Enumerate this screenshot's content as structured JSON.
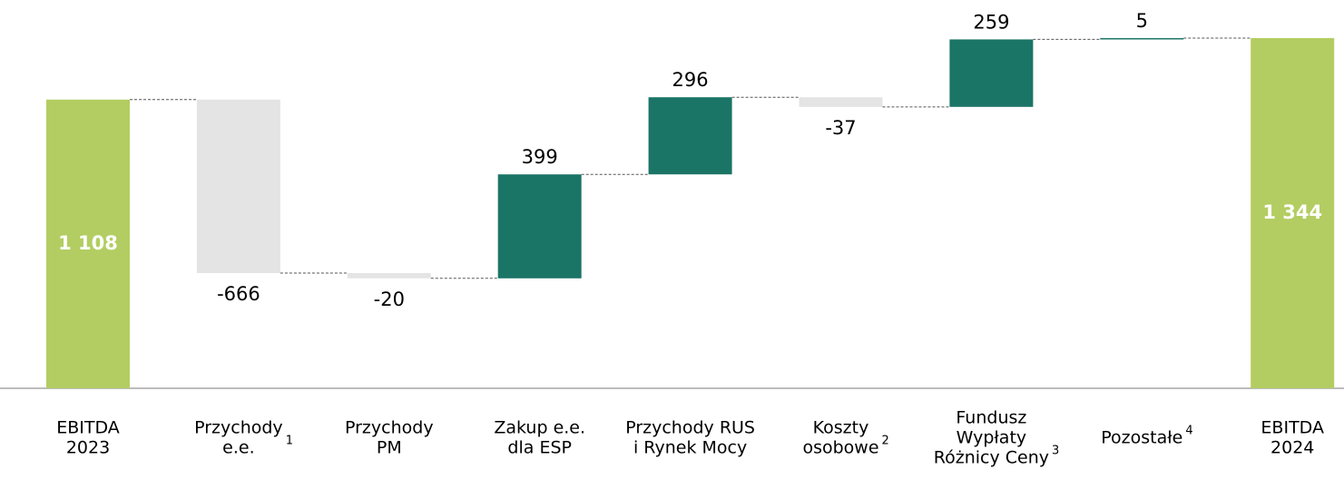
{
  "chart_data": {
    "type": "waterfall",
    "categories": [
      [
        "EBITDA",
        "2023"
      ],
      [
        "Przychody",
        "e.e."
      ],
      [
        "Przychody",
        "PM"
      ],
      [
        "Zakup e.e.",
        "dla ESP"
      ],
      [
        "Przychody RUS",
        "i Rynek Mocy"
      ],
      [
        "Koszty",
        "osobowe"
      ],
      [
        "Fundusz",
        "Wypłaty",
        "Różnicy Ceny"
      ],
      [
        "Pozostałe"
      ],
      [
        "EBITDA",
        "2024"
      ]
    ],
    "footnotes": [
      null,
      "1",
      null,
      null,
      null,
      "2",
      "3",
      "4",
      null
    ],
    "values": [
      1108,
      -666,
      -20,
      399,
      296,
      -37,
      259,
      5,
      1344
    ],
    "value_labels": [
      "1 108",
      "-666",
      "-20",
      "399",
      "296",
      "-37",
      "259",
      "5",
      "1 344"
    ],
    "colors": {
      "total": "#b3cd62",
      "increase": "#1b7566",
      "decrease": "#e4e4e4"
    }
  }
}
